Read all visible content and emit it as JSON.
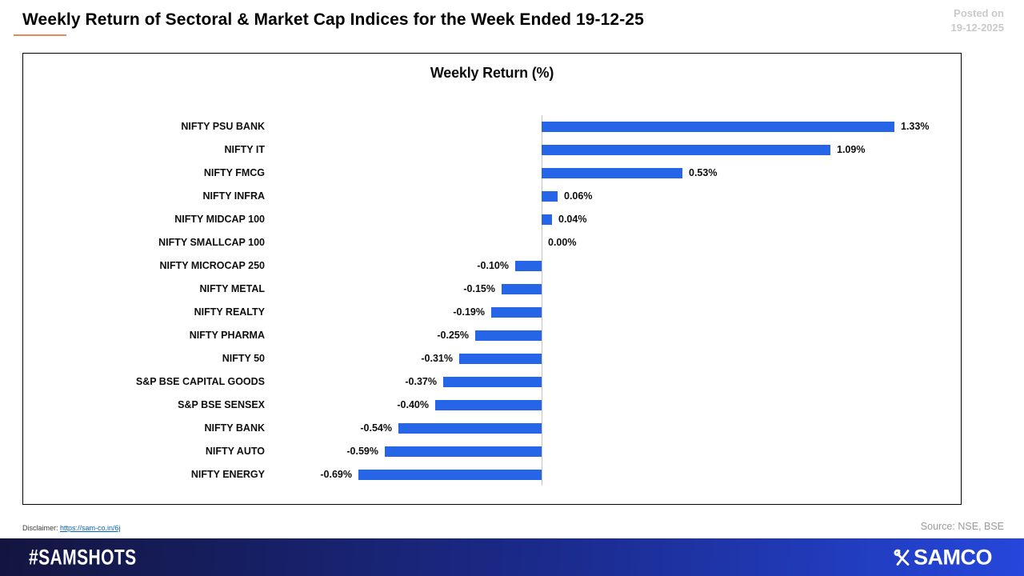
{
  "header": {
    "title": "Weekly Return of Sectoral & Market Cap Indices for the Week Ended 19-12-25",
    "posted_on_line1": "Posted on",
    "posted_on_line2": "19-12-2025"
  },
  "chart_data": {
    "type": "bar",
    "orientation": "horizontal",
    "title": "Weekly Return (%)",
    "categories": [
      "NIFTY PSU BANK",
      "NIFTY IT",
      "NIFTY FMCG",
      "NIFTY INFRA",
      "NIFTY MIDCAP 100",
      "NIFTY SMALLCAP 100",
      "NIFTY MICROCAP 250",
      "NIFTY METAL",
      "NIFTY REALTY",
      "NIFTY PHARMA",
      "NIFTY 50",
      "S&P BSE CAPITAL GOODS",
      "S&P BSE SENSEX",
      "NIFTY BANK",
      "NIFTY AUTO",
      "NIFTY ENERGY"
    ],
    "values": [
      1.33,
      1.09,
      0.53,
      0.06,
      0.04,
      0.0,
      -0.1,
      -0.15,
      -0.19,
      -0.25,
      -0.31,
      -0.37,
      -0.4,
      -0.54,
      -0.59,
      -0.69
    ],
    "value_labels": [
      "1.33%",
      "1.09%",
      "0.53%",
      "0.06%",
      "0.04%",
      "0.00%",
      "-0.10%",
      "-0.15%",
      "-0.19%",
      "-0.25%",
      "-0.31%",
      "-0.37%",
      "-0.40%",
      "-0.54%",
      "-0.59%",
      "-0.69%"
    ],
    "bar_color": "#2665E8",
    "axis_color": "#C6C3C3",
    "xlim": [
      -0.8,
      1.6
    ],
    "grid": false,
    "legend": "none",
    "xlabel": "",
    "ylabel": ""
  },
  "meta": {
    "disclaimer_label": "Disclaimer:",
    "disclaimer_link": "https://sam-co.in/6j",
    "source": "Source: NSE, BSE"
  },
  "brand_bar": {
    "hashtag": "#SAMSHOTS",
    "brand": "SAMCO",
    "gradient_left": "#13153F",
    "gradient_mid": "#1B2B8E",
    "gradient_right": "#2547DB"
  }
}
